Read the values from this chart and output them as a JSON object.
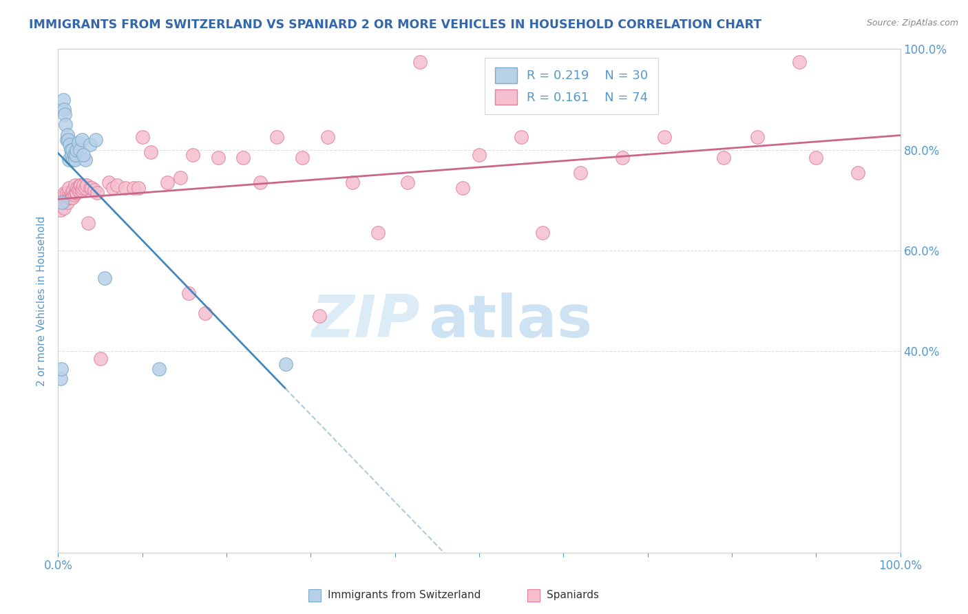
{
  "title": "IMMIGRANTS FROM SWITZERLAND VS SPANIARD 2 OR MORE VEHICLES IN HOUSEHOLD CORRELATION CHART",
  "source": "Source: ZipAtlas.com",
  "ylabel": "2 or more Vehicles in Household",
  "xlim": [
    0.0,
    1.0
  ],
  "ylim": [
    0.0,
    1.0
  ],
  "ytick_labels": [
    "",
    "40.0%",
    "60.0%",
    "80.0%",
    "100.0%"
  ],
  "ytick_values": [
    0.0,
    0.4,
    0.6,
    0.8,
    1.0
  ],
  "xtick_values": [
    0.0,
    0.1,
    0.2,
    0.3,
    0.4,
    0.5,
    0.6,
    0.7,
    0.8,
    0.9,
    1.0
  ],
  "legend_blue_R": "0.219",
  "legend_blue_N": "30",
  "legend_pink_R": "0.161",
  "legend_pink_N": "74",
  "legend_blue_label": "Immigrants from Switzerland",
  "legend_pink_label": "Spaniards",
  "blue_fill_color": "#b8d0e8",
  "pink_fill_color": "#f5bfcf",
  "blue_edge_color": "#7aaac8",
  "pink_edge_color": "#e080a0",
  "blue_line_color": "#4488bb",
  "pink_line_color": "#cc6688",
  "title_color": "#3366aa",
  "axis_label_color": "#5599cc",
  "watermark_color": "#cce5f5",
  "blue_x": [
    0.003,
    0.004,
    0.005,
    0.006,
    0.007,
    0.008,
    0.009,
    0.01,
    0.011,
    0.012,
    0.013,
    0.014,
    0.015,
    0.016,
    0.017,
    0.018,
    0.019,
    0.02,
    0.021,
    0.022,
    0.024,
    0.026,
    0.028,
    0.032,
    0.038,
    0.055,
    0.12,
    0.27,
    0.03,
    0.045
  ],
  "blue_y": [
    0.345,
    0.365,
    0.695,
    0.9,
    0.88,
    0.87,
    0.85,
    0.82,
    0.83,
    0.82,
    0.78,
    0.81,
    0.8,
    0.79,
    0.8,
    0.78,
    0.79,
    0.78,
    0.79,
    0.8,
    0.815,
    0.8,
    0.82,
    0.78,
    0.81,
    0.545,
    0.365,
    0.375,
    0.79,
    0.82
  ],
  "pink_x": [
    0.002,
    0.003,
    0.005,
    0.006,
    0.007,
    0.008,
    0.009,
    0.01,
    0.011,
    0.012,
    0.013,
    0.013,
    0.014,
    0.015,
    0.016,
    0.016,
    0.017,
    0.018,
    0.019,
    0.02,
    0.021,
    0.022,
    0.023,
    0.024,
    0.025,
    0.026,
    0.027,
    0.028,
    0.029,
    0.03,
    0.032,
    0.034,
    0.036,
    0.038,
    0.04,
    0.043,
    0.046,
    0.05,
    0.06,
    0.065,
    0.07,
    0.08,
    0.09,
    0.1,
    0.11,
    0.13,
    0.16,
    0.19,
    0.22,
    0.26,
    0.29,
    0.32,
    0.35,
    0.38,
    0.43,
    0.5,
    0.55,
    0.62,
    0.67,
    0.72,
    0.79,
    0.83,
    0.9,
    0.95,
    0.095,
    0.155,
    0.24,
    0.31,
    0.145,
    0.175,
    0.415,
    0.48,
    0.575,
    0.88
  ],
  "pink_y": [
    0.695,
    0.68,
    0.705,
    0.695,
    0.685,
    0.715,
    0.7,
    0.715,
    0.695,
    0.705,
    0.715,
    0.725,
    0.705,
    0.705,
    0.715,
    0.705,
    0.705,
    0.72,
    0.71,
    0.73,
    0.715,
    0.715,
    0.725,
    0.72,
    0.725,
    0.73,
    0.73,
    0.72,
    0.725,
    0.73,
    0.725,
    0.73,
    0.655,
    0.725,
    0.725,
    0.72,
    0.715,
    0.385,
    0.735,
    0.725,
    0.73,
    0.725,
    0.725,
    0.825,
    0.795,
    0.735,
    0.79,
    0.785,
    0.785,
    0.825,
    0.785,
    0.825,
    0.735,
    0.635,
    0.975,
    0.79,
    0.825,
    0.755,
    0.785,
    0.825,
    0.785,
    0.825,
    0.785,
    0.755,
    0.725,
    0.515,
    0.735,
    0.47,
    0.745,
    0.475,
    0.735,
    0.725,
    0.635,
    0.975
  ]
}
